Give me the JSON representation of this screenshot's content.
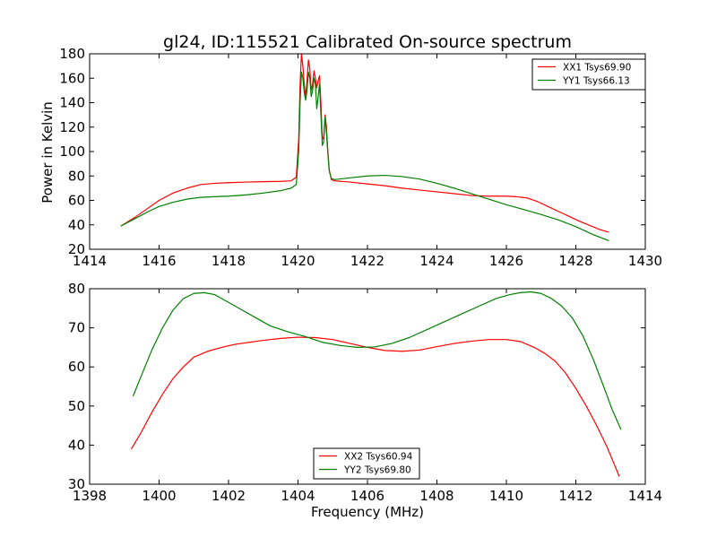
{
  "figure": {
    "title": "gl24, ID:115521 Calibrated On-source spectrum",
    "xlabel": "Frequency (MHz)",
    "ylabel": "Power in Kelvin"
  },
  "chart_data": [
    {
      "type": "line",
      "title": "gl24, ID:115521 Calibrated On-source spectrum",
      "xlabel": "",
      "ylabel": "Power in Kelvin",
      "xlim": [
        1414,
        1430
      ],
      "ylim": [
        20,
        180
      ],
      "xticks": [
        1414,
        1416,
        1418,
        1420,
        1422,
        1424,
        1426,
        1428,
        1430
      ],
      "yticks": [
        20,
        40,
        60,
        80,
        100,
        120,
        140,
        160,
        180
      ],
      "grid": false,
      "legend_position": "top-right",
      "series": [
        {
          "name": "XX1 Tsys69.90",
          "color": "#ff0000",
          "x": [
            1414.9,
            1415.3,
            1415.7,
            1416.0,
            1416.4,
            1416.8,
            1417.2,
            1417.6,
            1418.0,
            1418.5,
            1419.0,
            1419.5,
            1419.8,
            1419.95,
            1420.02,
            1420.06,
            1420.1,
            1420.14,
            1420.18,
            1420.22,
            1420.26,
            1420.3,
            1420.34,
            1420.38,
            1420.42,
            1420.46,
            1420.5,
            1420.54,
            1420.58,
            1420.62,
            1420.66,
            1420.7,
            1420.74,
            1420.78,
            1420.82,
            1420.86,
            1420.9,
            1420.96,
            1421.05,
            1421.5,
            1422.0,
            1422.5,
            1423.0,
            1423.5,
            1424.0,
            1424.5,
            1425.0,
            1425.5,
            1426.0,
            1426.3,
            1426.6,
            1426.9,
            1427.2,
            1427.5,
            1427.8,
            1428.1,
            1428.4,
            1428.7,
            1428.95
          ],
          "values": [
            39,
            46,
            54,
            60,
            66,
            70,
            73,
            74,
            74.5,
            75,
            75.3,
            75.6,
            76,
            79,
            110,
            155,
            180,
            170,
            155,
            145,
            158,
            175,
            168,
            150,
            155,
            166,
            160,
            152,
            158,
            162,
            140,
            110,
            112,
            130,
            120,
            100,
            85,
            77,
            76,
            75,
            73.5,
            72,
            70,
            68.5,
            67,
            65.5,
            64,
            63.5,
            63.5,
            63,
            62,
            59,
            55,
            51,
            47,
            43,
            39.5,
            36,
            34
          ]
        },
        {
          "name": "YY1 Tsys66.13",
          "color": "#008000",
          "x": [
            1414.9,
            1415.3,
            1415.7,
            1416.0,
            1416.4,
            1416.8,
            1417.2,
            1417.6,
            1418.0,
            1418.5,
            1419.0,
            1419.5,
            1419.8,
            1419.95,
            1420.02,
            1420.06,
            1420.1,
            1420.14,
            1420.18,
            1420.22,
            1420.26,
            1420.3,
            1420.34,
            1420.38,
            1420.42,
            1420.46,
            1420.5,
            1420.54,
            1420.58,
            1420.62,
            1420.66,
            1420.7,
            1420.74,
            1420.78,
            1420.82,
            1420.86,
            1420.9,
            1420.96,
            1421.05,
            1421.5,
            1422.0,
            1422.5,
            1423.0,
            1423.5,
            1424.0,
            1424.5,
            1425.0,
            1425.5,
            1426.0,
            1426.5,
            1427.0,
            1427.5,
            1428.0,
            1428.5,
            1428.95
          ],
          "values": [
            39,
            45,
            51,
            55,
            58.5,
            61,
            62.5,
            63,
            63.5,
            64.5,
            66,
            68,
            70,
            73,
            100,
            140,
            165,
            160,
            148,
            142,
            150,
            165,
            160,
            145,
            150,
            160,
            155,
            135,
            145,
            155,
            130,
            105,
            108,
            128,
            115,
            98,
            84,
            78,
            77,
            78.5,
            80,
            80.5,
            79.5,
            77.5,
            74,
            70,
            65.5,
            61,
            56.5,
            52.5,
            48.5,
            44,
            38.5,
            32,
            27
          ]
        }
      ]
    },
    {
      "type": "line",
      "title": "",
      "xlabel": "Frequency (MHz)",
      "ylabel": "",
      "xlim": [
        1398,
        1414
      ],
      "ylim": [
        30,
        80
      ],
      "xticks": [
        1398,
        1400,
        1402,
        1404,
        1406,
        1408,
        1410,
        1412,
        1414
      ],
      "yticks": [
        30,
        40,
        50,
        60,
        70,
        80
      ],
      "grid": false,
      "legend_position": "bottom-center",
      "series": [
        {
          "name": "XX2 Tsys60.94",
          "color": "#ff0000",
          "x": [
            1399.2,
            1399.5,
            1399.8,
            1400.1,
            1400.4,
            1400.7,
            1401.0,
            1401.4,
            1401.8,
            1402.2,
            1402.6,
            1403.0,
            1403.5,
            1404.0,
            1404.5,
            1405.0,
            1405.5,
            1406.0,
            1406.5,
            1407.0,
            1407.5,
            1408.0,
            1408.5,
            1409.0,
            1409.5,
            1410.0,
            1410.4,
            1410.8,
            1411.1,
            1411.4,
            1411.7,
            1412.0,
            1412.3,
            1412.6,
            1412.9,
            1413.25
          ],
          "values": [
            39,
            43.5,
            48.5,
            53,
            57,
            60,
            62.5,
            64,
            65,
            65.8,
            66.3,
            66.8,
            67.3,
            67.6,
            67.5,
            67,
            66,
            65,
            64.2,
            64,
            64.3,
            65.2,
            66,
            66.6,
            67,
            67,
            66.5,
            65,
            63.5,
            61.5,
            58.5,
            54.5,
            50,
            45,
            39.5,
            32
          ]
        },
        {
          "name": "YY2 Tsys69.80",
          "color": "#008000",
          "x": [
            1399.25,
            1399.5,
            1399.8,
            1400.1,
            1400.4,
            1400.7,
            1401.0,
            1401.3,
            1401.6,
            1402.0,
            1402.4,
            1402.8,
            1403.2,
            1403.7,
            1404.2,
            1404.7,
            1405.2,
            1405.7,
            1406.2,
            1406.7,
            1407.2,
            1407.7,
            1408.2,
            1408.7,
            1409.2,
            1409.7,
            1410.1,
            1410.4,
            1410.7,
            1411.0,
            1411.3,
            1411.6,
            1411.9,
            1412.2,
            1412.5,
            1412.8,
            1413.05,
            1413.3
          ],
          "values": [
            52.5,
            58,
            64.5,
            70,
            74.5,
            77.5,
            78.8,
            79,
            78.5,
            76.5,
            74.5,
            72.5,
            70.5,
            69,
            67.8,
            66.3,
            65.5,
            65,
            65.1,
            66,
            67.5,
            69.5,
            71.5,
            73.5,
            75.5,
            77.5,
            78.5,
            79,
            79.2,
            78.8,
            77.5,
            75.5,
            72.5,
            68,
            62,
            55,
            49,
            44
          ]
        }
      ]
    }
  ]
}
